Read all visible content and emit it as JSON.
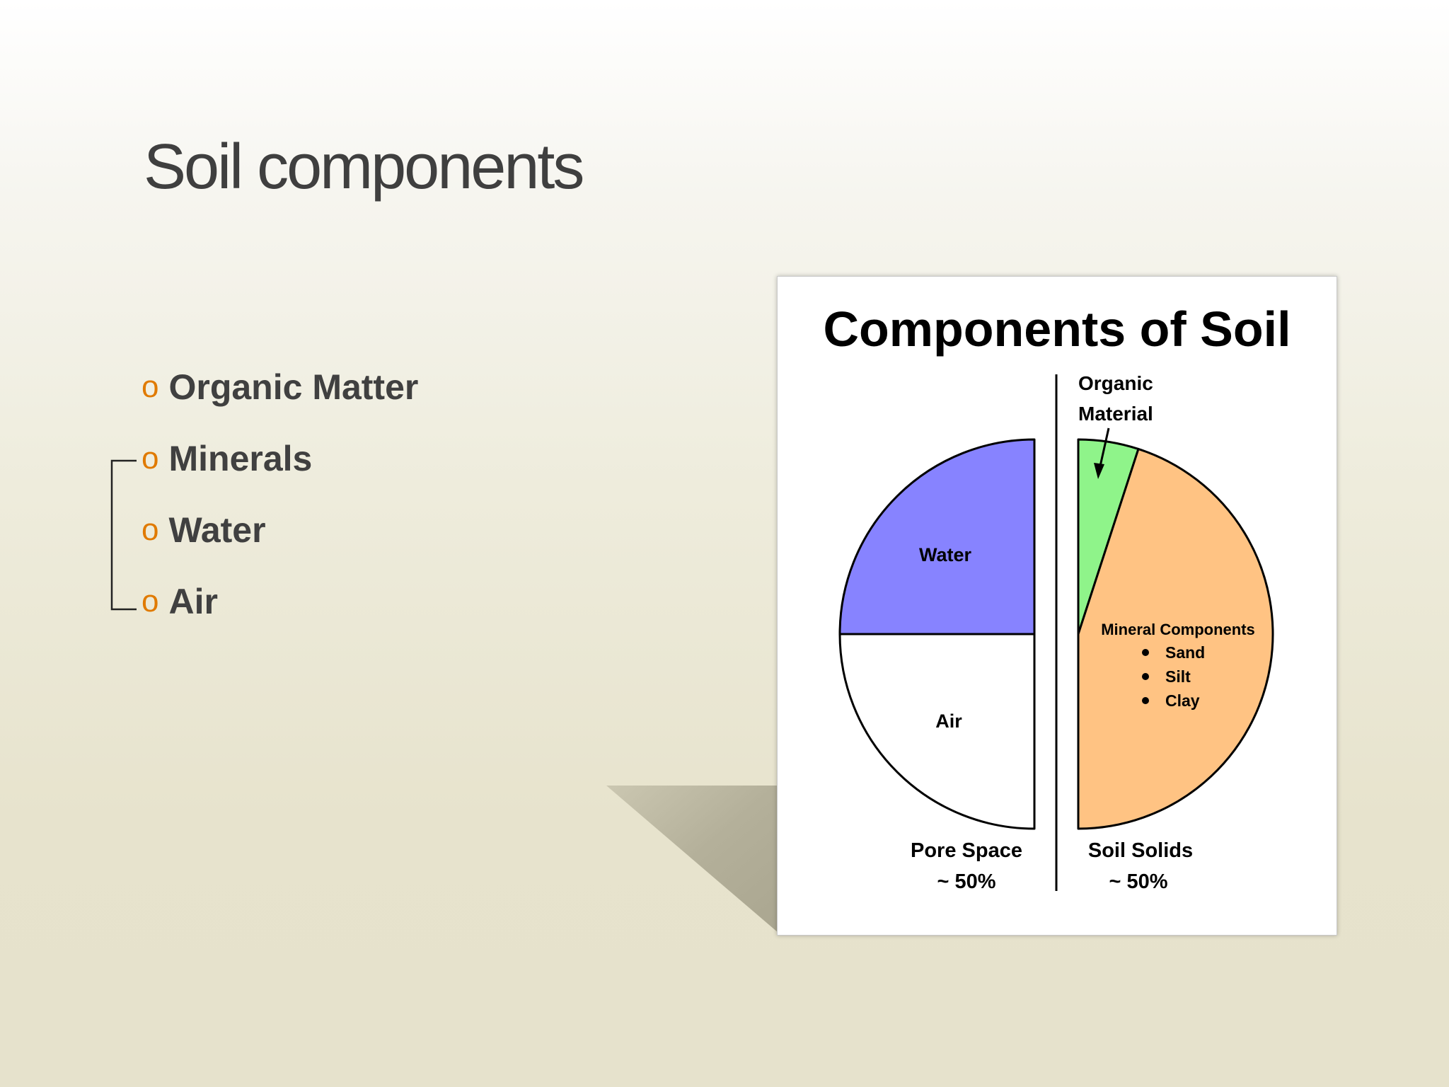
{
  "slide": {
    "title": "Soil components",
    "bullets": [
      {
        "marker": "o",
        "text": "Organic Matter"
      },
      {
        "marker": "o",
        "text": "Minerals"
      },
      {
        "marker": "o",
        "text": "Water"
      },
      {
        "marker": "o",
        "text": "Air"
      }
    ]
  },
  "chart_data": {
    "type": "pie",
    "title": "Components of Soil",
    "halves": [
      {
        "label": "Pore Space",
        "value_label": "~ 50%",
        "percent": 50,
        "slices": [
          {
            "name": "Water",
            "percent": 25,
            "color": "#8783ff"
          },
          {
            "name": "Air",
            "percent": 25,
            "color": "#ffffff"
          }
        ]
      },
      {
        "label": "Soil Solids",
        "value_label": "~ 50%",
        "percent": 50,
        "slices": [
          {
            "name": "Organic Material",
            "label_lines": [
              "Organic",
              "Material"
            ],
            "percent": 5,
            "color": "#8ff48a"
          },
          {
            "name": "Mineral Components",
            "percent": 45,
            "color": "#ffc383",
            "items": [
              "Sand",
              "Silt",
              "Clay"
            ]
          }
        ]
      }
    ]
  }
}
